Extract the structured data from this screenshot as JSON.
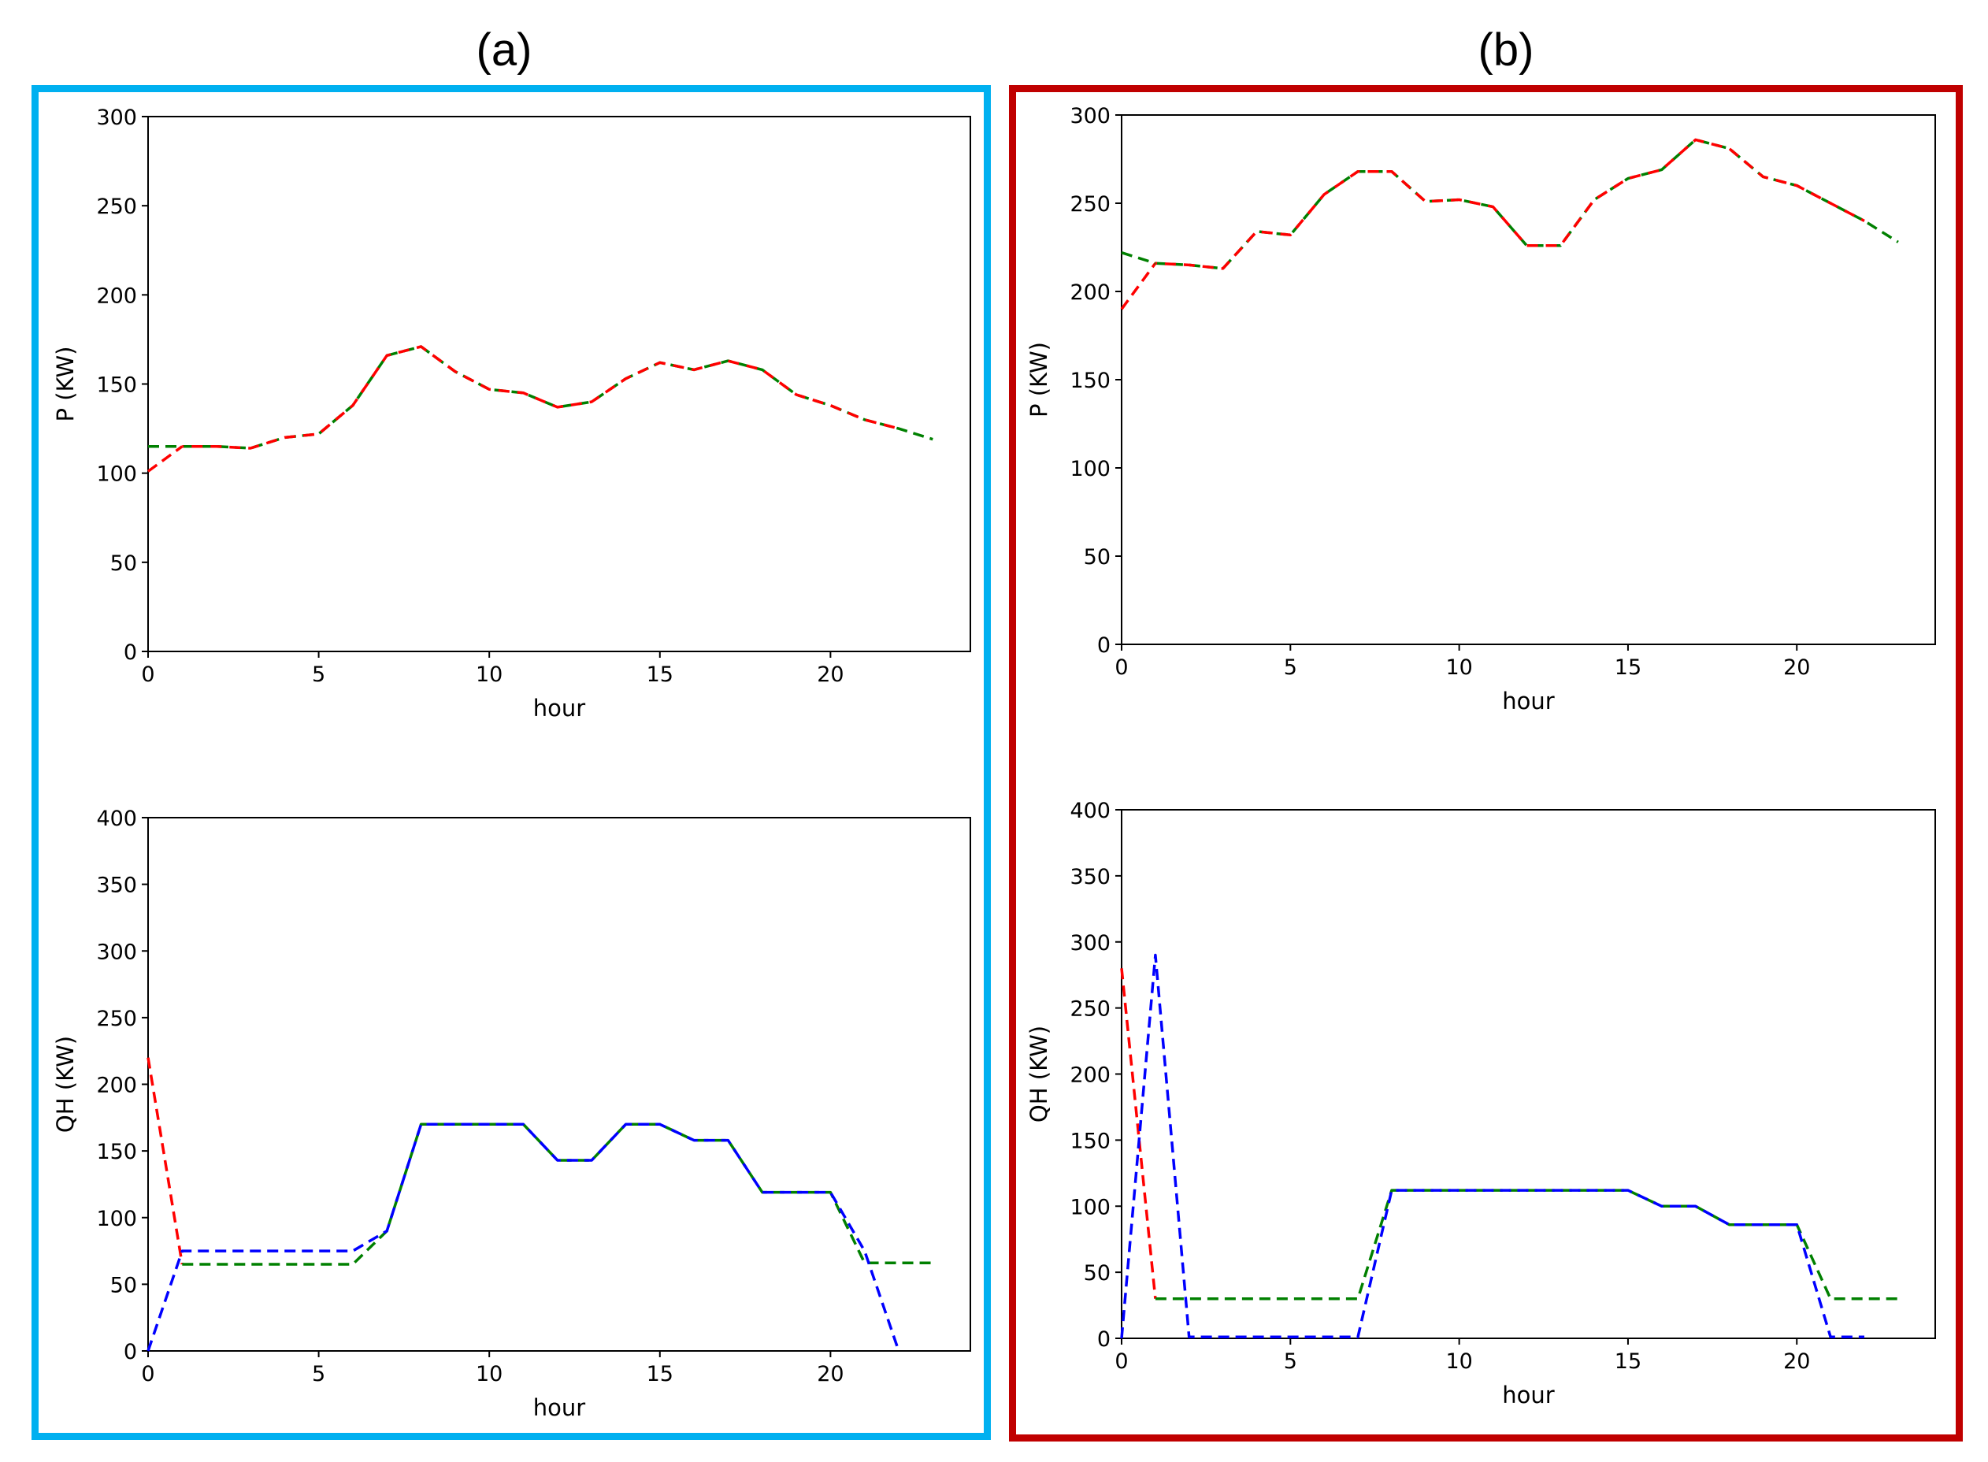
{
  "panels": [
    {
      "label": "(a)",
      "frame_color": "#00b0f0"
    },
    {
      "label": "(b)",
      "frame_color": "#c00000"
    }
  ],
  "series_colors": {
    "red": "#ff0000",
    "green": "#008000",
    "blue": "#0000ff"
  },
  "chart_data": [
    {
      "id": "a-top",
      "panel": "(a)",
      "type": "line",
      "xlabel": "hour",
      "ylabel": "P (KW)",
      "xlim": [
        0,
        24
      ],
      "ylim": [
        0,
        300
      ],
      "xticks": [
        0,
        5,
        10,
        15,
        20
      ],
      "yticks": [
        0,
        50,
        100,
        150,
        200,
        250,
        300
      ],
      "series": [
        {
          "name": "red",
          "color": "#ff0000",
          "x": [
            0,
            1
          ],
          "values": [
            101,
            115
          ]
        },
        {
          "name": "green",
          "color": "#008000",
          "x": [
            0,
            1,
            2,
            3,
            4,
            5,
            6,
            7,
            8,
            9,
            10,
            11,
            12,
            13,
            14,
            15,
            16,
            17,
            18,
            19,
            20,
            21,
            22,
            23
          ],
          "values": [
            115,
            115,
            115,
            114,
            120,
            122,
            138,
            166,
            171,
            157,
            147,
            145,
            137,
            140,
            153,
            162,
            158,
            163,
            158,
            144,
            138,
            130,
            125,
            119
          ]
        },
        {
          "name": "red-overlay",
          "color": "#ff0000",
          "x": [
            1,
            2,
            3,
            4,
            5,
            6,
            7,
            8,
            9,
            10,
            11,
            12,
            13,
            14,
            15,
            16,
            17,
            18,
            19,
            20,
            21,
            22
          ],
          "values": [
            115,
            115,
            114,
            120,
            122,
            138,
            166,
            171,
            157,
            147,
            145,
            137,
            140,
            153,
            162,
            158,
            163,
            158,
            144,
            138,
            130,
            125
          ]
        }
      ]
    },
    {
      "id": "a-bottom",
      "panel": "(a)",
      "type": "line",
      "xlabel": "hour",
      "ylabel": "QH (KW)",
      "xlim": [
        0,
        24
      ],
      "ylim": [
        0,
        400
      ],
      "xticks": [
        0,
        5,
        10,
        15,
        20
      ],
      "yticks": [
        0,
        50,
        100,
        150,
        200,
        250,
        300,
        350,
        400
      ],
      "series": [
        {
          "name": "red",
          "color": "#ff0000",
          "x": [
            0,
            1
          ],
          "values": [
            220,
            65
          ]
        },
        {
          "name": "green",
          "color": "#008000",
          "x": [
            1,
            2,
            3,
            4,
            5,
            6,
            7,
            8,
            9,
            10,
            11,
            12,
            13,
            14,
            15,
            16,
            17,
            18,
            19,
            20,
            21,
            22,
            23
          ],
          "values": [
            65,
            65,
            65,
            65,
            65,
            65,
            90,
            170,
            170,
            170,
            170,
            143,
            143,
            170,
            170,
            158,
            158,
            119,
            119,
            119,
            66,
            66,
            66
          ]
        },
        {
          "name": "blue",
          "color": "#0000ff",
          "x": [
            0,
            1,
            2,
            3,
            4,
            5,
            6,
            7,
            8,
            9,
            10,
            11,
            12,
            13,
            14,
            15,
            16,
            17,
            18,
            19,
            20,
            21,
            22
          ],
          "values": [
            0,
            75,
            75,
            75,
            75,
            75,
            75,
            90,
            170,
            170,
            170,
            170,
            143,
            143,
            170,
            170,
            158,
            158,
            119,
            119,
            119,
            75,
            0
          ]
        }
      ]
    },
    {
      "id": "b-top",
      "panel": "(b)",
      "type": "line",
      "xlabel": "hour",
      "ylabel": "P (KW)",
      "xlim": [
        0,
        24
      ],
      "ylim": [
        0,
        300
      ],
      "xticks": [
        0,
        5,
        10,
        15,
        20
      ],
      "yticks": [
        0,
        50,
        100,
        150,
        200,
        250,
        300
      ],
      "series": [
        {
          "name": "red",
          "color": "#ff0000",
          "x": [
            0,
            1
          ],
          "values": [
            190,
            216
          ]
        },
        {
          "name": "green",
          "color": "#008000",
          "x": [
            0,
            1,
            2,
            3,
            4,
            5,
            6,
            7,
            8,
            9,
            10,
            11,
            12,
            13,
            14,
            15,
            16,
            17,
            18,
            19,
            20,
            21,
            22,
            23
          ],
          "values": [
            222,
            216,
            215,
            213,
            234,
            232,
            255,
            268,
            268,
            251,
            252,
            248,
            226,
            226,
            252,
            264,
            269,
            286,
            281,
            265,
            260,
            250,
            240,
            228
          ]
        },
        {
          "name": "red-overlay",
          "color": "#ff0000",
          "x": [
            1,
            2,
            3,
            4,
            5,
            6,
            7,
            8,
            9,
            10,
            11,
            12,
            13,
            14,
            15,
            16,
            17,
            18,
            19,
            20,
            21,
            22
          ],
          "values": [
            216,
            215,
            213,
            234,
            232,
            255,
            268,
            268,
            251,
            252,
            248,
            226,
            226,
            252,
            264,
            269,
            286,
            281,
            265,
            260,
            250,
            240
          ]
        }
      ]
    },
    {
      "id": "b-bottom",
      "panel": "(b)",
      "type": "line",
      "xlabel": "hour",
      "ylabel": "QH (KW)",
      "xlim": [
        0,
        24
      ],
      "ylim": [
        0,
        400
      ],
      "xticks": [
        0,
        5,
        10,
        15,
        20
      ],
      "yticks": [
        0,
        50,
        100,
        150,
        200,
        250,
        300,
        350,
        400
      ],
      "series": [
        {
          "name": "red",
          "color": "#ff0000",
          "x": [
            0,
            1
          ],
          "values": [
            280,
            30
          ]
        },
        {
          "name": "green",
          "color": "#008000",
          "x": [
            1,
            2,
            3,
            4,
            5,
            6,
            7,
            8,
            9,
            10,
            11,
            12,
            13,
            14,
            15,
            16,
            17,
            18,
            19,
            20,
            21,
            22,
            23
          ],
          "values": [
            30,
            30,
            30,
            30,
            30,
            30,
            30,
            112,
            112,
            112,
            112,
            112,
            112,
            112,
            112,
            100,
            100,
            86,
            86,
            86,
            30,
            30,
            30
          ]
        },
        {
          "name": "blue",
          "color": "#0000ff",
          "x": [
            0,
            1,
            2,
            3,
            4,
            5,
            6,
            7,
            8,
            9,
            10,
            11,
            12,
            13,
            14,
            15,
            16,
            17,
            18,
            19,
            20,
            21,
            22
          ],
          "values": [
            0,
            290,
            1,
            1,
            1,
            1,
            1,
            1,
            112,
            112,
            112,
            112,
            112,
            112,
            112,
            112,
            100,
            100,
            86,
            86,
            86,
            1,
            1
          ]
        }
      ]
    }
  ]
}
